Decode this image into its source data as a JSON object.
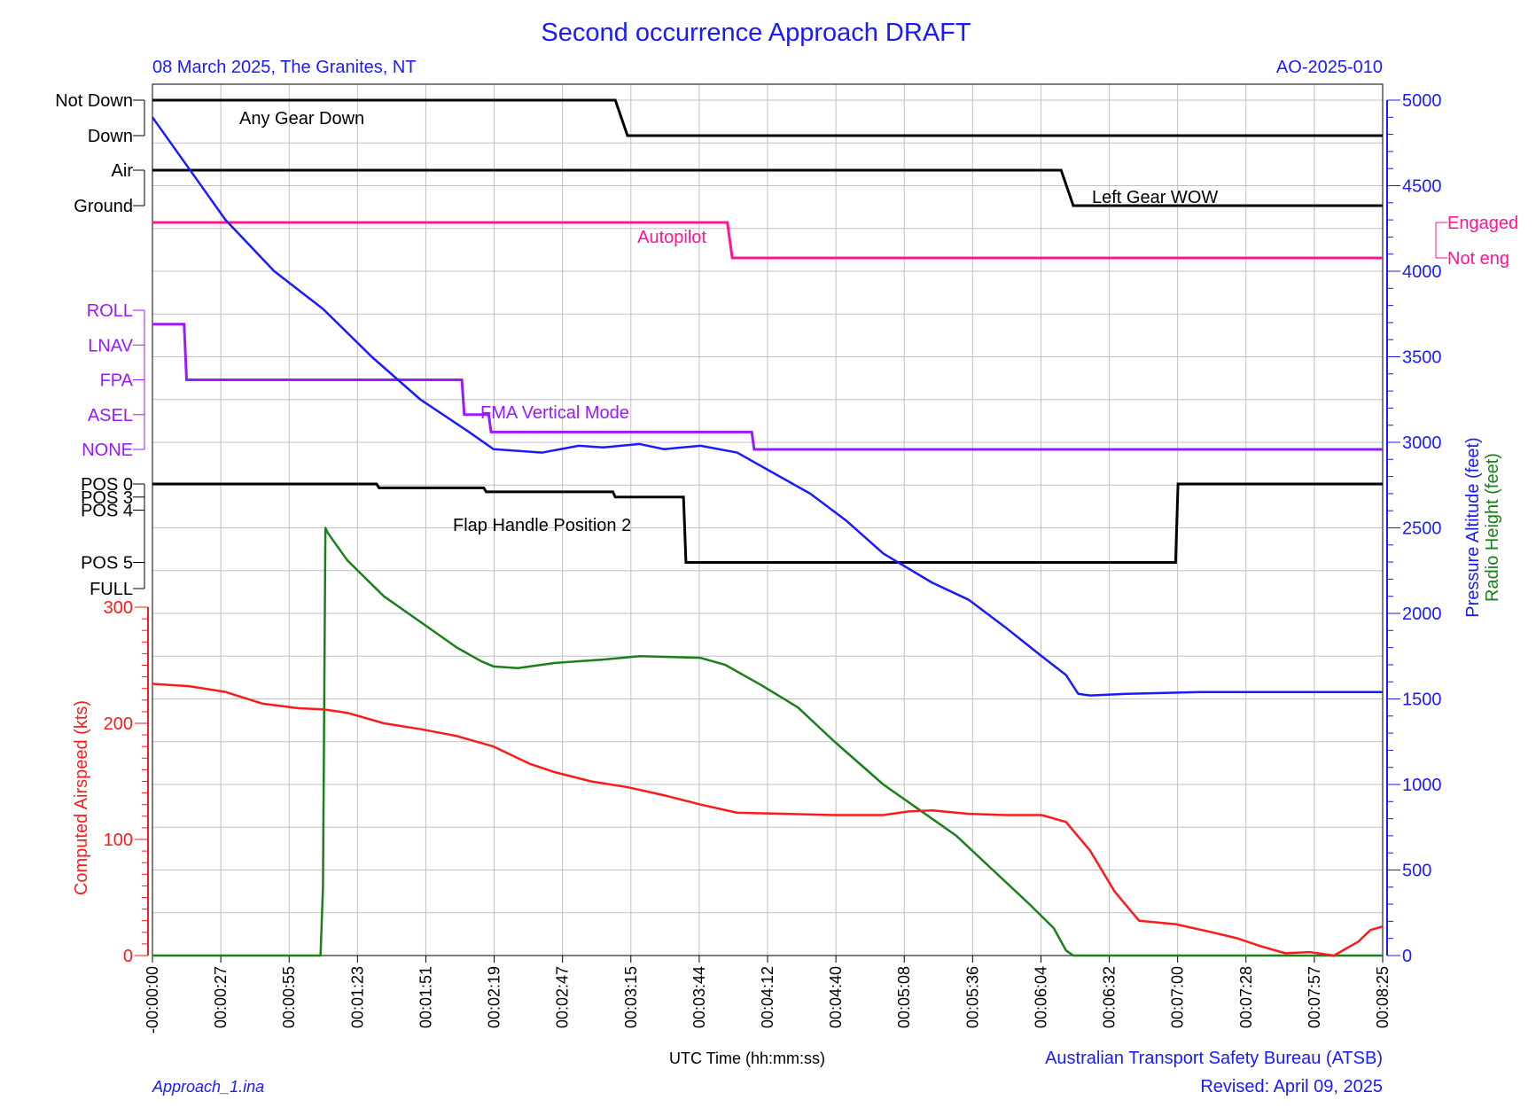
{
  "header": {
    "title": "Second occurrence Approach DRAFT",
    "left_subtitle": "08 March 2025, The Granites, NT",
    "right_subtitle": "AO-2025-010"
  },
  "footer": {
    "x_axis_label": "UTC Time (hh:mm:ss)",
    "organization": "Australian Transport Safety Bureau (ATSB)",
    "file_name": "Approach_1.ina",
    "revised": "Revised: April 09, 2025"
  },
  "colors": {
    "black": "#000000",
    "blue": "#1a1aff",
    "red": "#ff1a1a",
    "green": "#1a801a",
    "magenta": "#ff1493",
    "purple": "#9a1aff",
    "grid": "#c0c0c0"
  },
  "chart_data": {
    "type": "line",
    "x_ticks": [
      "-00:00:00",
      "00:00:27",
      "00:00:55",
      "00:01:23",
      "00:01:51",
      "00:02:19",
      "00:02:47",
      "00:03:15",
      "00:03:44",
      "00:04:12",
      "00:04:40",
      "00:05:08",
      "00:05:36",
      "00:06:04",
      "00:06:32",
      "00:07:00",
      "00:07:28",
      "00:07:57",
      "00:08:25"
    ],
    "x_unit": "seconds",
    "xlim": [
      0,
      505
    ],
    "grid": true,
    "discrete_params": [
      {
        "name": "Any Gear Down",
        "color": "#000000",
        "states": [
          "Not Down",
          "Down"
        ],
        "points": [
          [
            0,
            "Not Down"
          ],
          [
            190,
            "Not Down"
          ],
          [
            195,
            "Down"
          ],
          [
            505,
            "Down"
          ]
        ]
      },
      {
        "name": "Left Gear WOW",
        "color": "#000000",
        "states": [
          "Air",
          "Ground"
        ],
        "points": [
          [
            0,
            "Air"
          ],
          [
            373,
            "Air"
          ],
          [
            378,
            "Ground"
          ],
          [
            505,
            "Ground"
          ]
        ]
      },
      {
        "name": "Autopilot",
        "color": "#ff1493",
        "states": [
          "Engaged",
          "Not eng"
        ],
        "points": [
          [
            0,
            "Engaged"
          ],
          [
            236,
            "Engaged"
          ],
          [
            238,
            "Not eng"
          ],
          [
            505,
            "Not eng"
          ]
        ]
      },
      {
        "name": "FMA Vertical Mode",
        "color": "#9a1aff",
        "states": [
          "ROLL",
          "LNAV",
          "FPA",
          "ASEL",
          "NONE"
        ],
        "state_values": {
          "ROLL": 4,
          "LNAV": 3,
          "FPA": 2,
          "ASEL": 1,
          "NONE": 0
        },
        "points": [
          [
            0,
            3.6
          ],
          [
            13,
            3.6
          ],
          [
            14,
            2
          ],
          [
            127,
            2
          ],
          [
            128,
            1
          ],
          [
            138,
            1
          ],
          [
            139,
            0.5
          ],
          [
            246,
            0.5
          ],
          [
            247,
            0
          ],
          [
            505,
            0
          ]
        ]
      },
      {
        "name": "Flap Handle Position 2",
        "color": "#000000",
        "states": [
          "POS 0",
          "POS 3",
          "POS 4",
          "POS 5",
          "FULL"
        ],
        "state_values": {
          "POS 0": 4,
          "POS 3": 3.5,
          "POS 4": 3,
          "POS 5": 1,
          "FULL": 0
        },
        "points": [
          [
            0,
            4
          ],
          [
            92,
            4
          ],
          [
            93,
            3.85
          ],
          [
            136,
            3.85
          ],
          [
            137,
            3.7
          ],
          [
            189,
            3.7
          ],
          [
            190,
            3.5
          ],
          [
            218,
            3.5
          ],
          [
            219,
            1
          ],
          [
            420,
            1
          ],
          [
            421,
            4
          ],
          [
            505,
            4
          ]
        ]
      }
    ],
    "series": [
      {
        "name": "Pressure Altitude (feet)",
        "axis": "right",
        "color": "#1a1aff",
        "points": [
          [
            0,
            4900
          ],
          [
            15,
            4600
          ],
          [
            30,
            4300
          ],
          [
            50,
            4000
          ],
          [
            70,
            3780
          ],
          [
            90,
            3500
          ],
          [
            110,
            3250
          ],
          [
            130,
            3060
          ],
          [
            140,
            2960
          ],
          [
            160,
            2940
          ],
          [
            175,
            2980
          ],
          [
            185,
            2970
          ],
          [
            200,
            2990
          ],
          [
            210,
            2960
          ],
          [
            225,
            2980
          ],
          [
            240,
            2940
          ],
          [
            255,
            2820
          ],
          [
            270,
            2700
          ],
          [
            285,
            2540
          ],
          [
            300,
            2350
          ],
          [
            320,
            2180
          ],
          [
            335,
            2080
          ],
          [
            350,
            1920
          ],
          [
            365,
            1750
          ],
          [
            375,
            1640
          ],
          [
            380,
            1530
          ],
          [
            385,
            1520
          ],
          [
            400,
            1530
          ],
          [
            430,
            1540
          ],
          [
            505,
            1540
          ]
        ]
      },
      {
        "name": "Radio Height (feet)",
        "axis": "right",
        "color": "#1a801a",
        "points": [
          [
            0,
            0
          ],
          [
            69,
            0
          ],
          [
            70,
            400
          ],
          [
            71,
            2500
          ],
          [
            72,
            2470
          ],
          [
            80,
            2310
          ],
          [
            95,
            2100
          ],
          [
            110,
            1950
          ],
          [
            125,
            1800
          ],
          [
            135,
            1720
          ],
          [
            140,
            1690
          ],
          [
            150,
            1680
          ],
          [
            165,
            1710
          ],
          [
            185,
            1730
          ],
          [
            200,
            1750
          ],
          [
            225,
            1740
          ],
          [
            235,
            1700
          ],
          [
            250,
            1580
          ],
          [
            265,
            1450
          ],
          [
            280,
            1250
          ],
          [
            300,
            1000
          ],
          [
            315,
            850
          ],
          [
            330,
            700
          ],
          [
            345,
            500
          ],
          [
            360,
            300
          ],
          [
            370,
            160
          ],
          [
            375,
            30
          ],
          [
            378,
            0
          ],
          [
            505,
            0
          ]
        ]
      },
      {
        "name": "Computed Airspeed (kts)",
        "axis": "left",
        "color": "#ff1a1a",
        "points": [
          [
            0,
            234
          ],
          [
            15,
            232
          ],
          [
            30,
            227
          ],
          [
            45,
            217
          ],
          [
            60,
            213
          ],
          [
            70,
            212
          ],
          [
            80,
            209
          ],
          [
            95,
            200
          ],
          [
            110,
            195
          ],
          [
            125,
            189
          ],
          [
            140,
            180
          ],
          [
            155,
            165
          ],
          [
            165,
            158
          ],
          [
            180,
            150
          ],
          [
            195,
            145
          ],
          [
            210,
            138
          ],
          [
            225,
            130
          ],
          [
            240,
            123
          ],
          [
            260,
            122
          ],
          [
            280,
            121
          ],
          [
            300,
            121
          ],
          [
            310,
            124
          ],
          [
            320,
            125
          ],
          [
            335,
            122
          ],
          [
            350,
            121
          ],
          [
            365,
            121
          ],
          [
            375,
            115
          ],
          [
            385,
            90
          ],
          [
            395,
            55
          ],
          [
            405,
            30
          ],
          [
            420,
            27
          ],
          [
            435,
            20
          ],
          [
            445,
            15
          ],
          [
            455,
            8
          ],
          [
            465,
            2
          ],
          [
            475,
            3
          ],
          [
            485,
            0
          ],
          [
            495,
            12
          ],
          [
            500,
            22
          ],
          [
            505,
            25
          ]
        ]
      }
    ],
    "left_axis": {
      "label": "Computed Airspeed (kts)",
      "ylim": [
        0,
        300
      ],
      "ticks": [
        0,
        100,
        200,
        300
      ]
    },
    "right_axis": {
      "labels": [
        "Pressure Altitude (feet)",
        "Radio Height (feet)"
      ],
      "ylim": [
        0,
        5000
      ],
      "ticks": [
        0,
        500,
        1000,
        1500,
        2000,
        2500,
        3000,
        3500,
        4000,
        4500,
        5000
      ]
    }
  }
}
